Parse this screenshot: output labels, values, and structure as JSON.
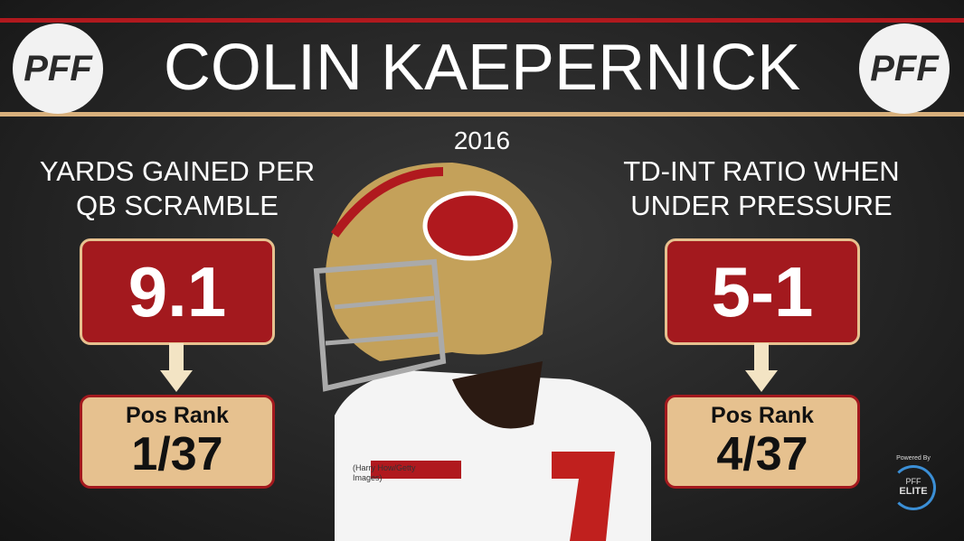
{
  "header": {
    "logo_left": "PFF",
    "title": "COLIN KAEPERNICK",
    "logo_right": "PFF",
    "season": "2016"
  },
  "stats": [
    {
      "label_lines": [
        "YARDS GAINED PER",
        "QB SCRAMBLE"
      ],
      "value": "9.1",
      "rank_label": "Pos Rank",
      "rank": "1/37"
    },
    {
      "label_lines": [
        "TD-INT RATIO WHEN",
        "UNDER PRESSURE"
      ],
      "value": "5-1",
      "rank_label": "Pos Rank",
      "rank": "4/37"
    }
  ],
  "photo_credit_lines": [
    "(Harry How/Getty",
    "Images)"
  ],
  "badge": {
    "powered": "Powered By",
    "brand": "PFF",
    "tier": "ELITE"
  }
}
